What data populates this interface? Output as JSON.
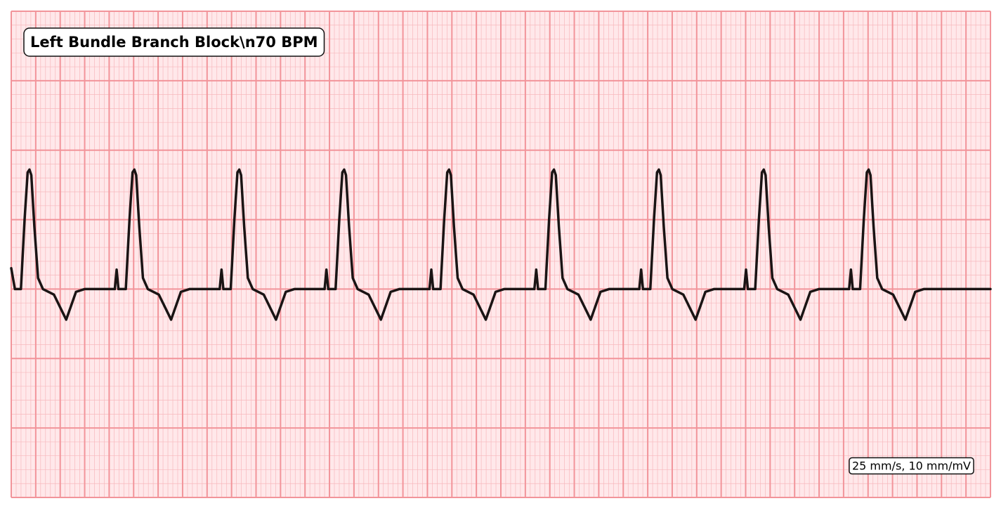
{
  "chart_data": {
    "type": "line",
    "title": "Left Bundle Branch Block\\n70 BPM",
    "annotation": "25 mm/s, 10 mm/mV",
    "xlim": [
      0,
      8
    ],
    "ylim": [
      -1.5,
      2
    ],
    "grid": true,
    "series": [
      {
        "name": "ECG",
        "color": "#1a1414",
        "x": [
          0,
          0.03,
          0.079,
          0.109,
          0.134,
          0.149,
          0.164,
          0.189,
          0.219,
          0.259,
          0.349,
          0.449,
          0.529,
          0.599,
          0.846,
          0.861,
          0.876,
          0.936,
          0.966,
          0.991,
          1.006,
          1.021,
          1.046,
          1.076,
          1.116,
          1.206,
          1.306,
          1.386,
          1.456,
          1.703,
          1.718,
          1.733,
          1.793,
          1.823,
          1.848,
          1.863,
          1.878,
          1.903,
          1.933,
          1.973,
          2.063,
          2.163,
          2.243,
          2.313,
          2.56,
          2.575,
          2.59,
          2.65,
          2.68,
          2.705,
          2.72,
          2.735,
          2.76,
          2.79,
          2.83,
          2.92,
          3.02,
          3.1,
          3.17,
          3.417,
          3.432,
          3.447,
          3.507,
          3.537,
          3.562,
          3.577,
          3.592,
          3.617,
          3.647,
          3.687,
          3.777,
          3.877,
          3.957,
          4.027,
          4.274,
          4.289,
          4.304,
          4.364,
          4.394,
          4.419,
          4.434,
          4.449,
          4.474,
          4.504,
          4.544,
          4.634,
          4.734,
          4.814,
          4.884,
          5.131,
          5.146,
          5.161,
          5.221,
          5.251,
          5.276,
          5.291,
          5.306,
          5.331,
          5.361,
          5.401,
          5.491,
          5.591,
          5.671,
          5.741,
          5.988,
          6.003,
          6.018,
          6.078,
          6.108,
          6.133,
          6.148,
          6.163,
          6.188,
          6.218,
          6.258,
          6.348,
          6.448,
          6.528,
          6.598,
          6.845,
          6.86,
          6.875,
          6.935,
          6.965,
          6.99,
          7.005,
          7.02,
          7.045,
          7.075,
          7.115,
          7.205,
          7.305,
          7.385,
          7.455,
          8
        ],
        "values": [
          0.15,
          0,
          0,
          0.5,
          0.84,
          0.86,
          0.82,
          0.45,
          0.08,
          0,
          -0.04,
          -0.22,
          -0.02,
          0,
          0,
          0.14,
          0,
          0,
          0.5,
          0.84,
          0.86,
          0.82,
          0.45,
          0.08,
          0,
          -0.04,
          -0.22,
          -0.02,
          0,
          0,
          0.14,
          0,
          0,
          0.5,
          0.84,
          0.86,
          0.82,
          0.45,
          0.08,
          0,
          -0.04,
          -0.22,
          -0.02,
          0,
          0,
          0.14,
          0,
          0,
          0.5,
          0.84,
          0.86,
          0.82,
          0.45,
          0.08,
          0,
          -0.04,
          -0.22,
          -0.02,
          0,
          0,
          0.14,
          0,
          0,
          0.5,
          0.84,
          0.86,
          0.82,
          0.45,
          0.08,
          0,
          -0.04,
          -0.22,
          -0.02,
          0,
          0,
          0.14,
          0,
          0,
          0.5,
          0.84,
          0.86,
          0.82,
          0.45,
          0.08,
          0,
          -0.04,
          -0.22,
          -0.02,
          0,
          0,
          0.14,
          0,
          0,
          0.5,
          0.84,
          0.86,
          0.82,
          0.45,
          0.08,
          0,
          -0.04,
          -0.22,
          -0.02,
          0,
          0,
          0.14,
          0,
          0,
          0.5,
          0.84,
          0.86,
          0.82,
          0.45,
          0.08,
          0,
          -0.04,
          -0.22,
          -0.02,
          0,
          0,
          0.14,
          0,
          0,
          0.5,
          0.84,
          0.86,
          0.82,
          0.45,
          0.08,
          0,
          -0.04,
          -0.22,
          -0.02,
          0,
          0
        ]
      }
    ]
  }
}
